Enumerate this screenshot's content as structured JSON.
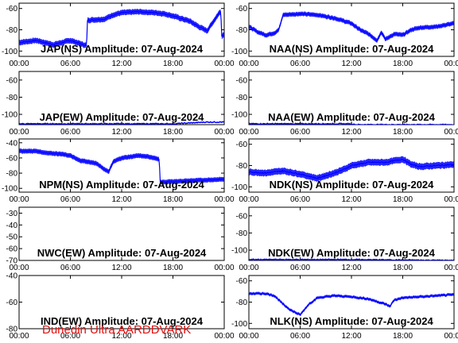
{
  "footer": "Dunedin Ultra AARDDVARK",
  "colors": {
    "trace": "#0000ff",
    "footer": "#e01010",
    "axis": "#000000"
  },
  "chart_data": [
    {
      "type": "line",
      "title": "JAP(NS) Amplitude: 07-Aug-2024",
      "ylim": [
        -105,
        -55
      ],
      "yticks": [
        "-60",
        "-80",
        "-100"
      ],
      "xticks": [
        "00:00",
        "06:00",
        "12:00",
        "18:00",
        "00:00"
      ],
      "series": [
        {
          "x": [
            0,
            2,
            4,
            6,
            7.9,
            8,
            10,
            11,
            12,
            14,
            16,
            17,
            18,
            20,
            21,
            22,
            23,
            23.6,
            23.7,
            24
          ],
          "y": [
            -92,
            -90,
            -94,
            -90,
            -95,
            -71,
            -70,
            -66,
            -64,
            -63,
            -64,
            -65,
            -67,
            -72,
            -77,
            -81,
            -69,
            -62,
            -86,
            -84
          ],
          "noise": 5
        }
      ]
    },
    {
      "type": "line",
      "title": "NAA(NS) Amplitude: 07-Aug-2024",
      "ylim": [
        -105,
        -55
      ],
      "yticks": [
        "-60",
        "-80",
        "-100"
      ],
      "xticks": [
        "00:00",
        "06:00",
        "12:00",
        "18:00",
        "00:00"
      ],
      "series": [
        {
          "x": [
            0,
            1,
            2,
            3,
            3.5,
            4,
            6,
            8,
            10,
            12,
            13,
            14,
            15,
            15.5,
            16,
            17,
            18,
            19,
            20,
            22,
            24
          ],
          "y": [
            -77,
            -82,
            -85,
            -83,
            -80,
            -66,
            -65,
            -66,
            -69,
            -74,
            -80,
            -84,
            -90,
            -82,
            -89,
            -84,
            -85,
            -80,
            -78,
            -77,
            -74
          ],
          "noise": 4
        }
      ]
    },
    {
      "type": "line",
      "title": "JAP(EW) Amplitude: 07-Aug-2024",
      "ylim": [
        -112,
        -50
      ],
      "yticks": [
        "-60",
        "-80",
        "-100"
      ],
      "xticks": [
        "00:00",
        "06:00",
        "12:00",
        "18:00",
        "00:00"
      ],
      "series": [
        {
          "x": [
            0,
            6,
            12,
            18,
            22,
            24
          ],
          "y": [
            -111,
            -111,
            -111,
            -111,
            -109,
            -109
          ],
          "noise": 1.5
        }
      ]
    },
    {
      "type": "line",
      "title": "NAA(EW) Amplitude: 07-Aug-2024",
      "ylim": [
        -112,
        -50
      ],
      "yticks": [
        "-60",
        "-80",
        "-100"
      ],
      "xticks": [
        "00:00",
        "06:00",
        "12:00",
        "18:00",
        "00:00"
      ],
      "series": [
        {
          "x": [
            0,
            8,
            12,
            12.5,
            24
          ],
          "y": [
            -111,
            -111,
            -111,
            -112,
            -112
          ],
          "noise": 1.5
        }
      ]
    },
    {
      "type": "line",
      "title": "NPM(NS) Amplitude: 07-Aug-2024",
      "ylim": [
        -105,
        -35
      ],
      "yticks": [
        "-40",
        "-60",
        "-80",
        "-100"
      ],
      "xticks": [
        "00:00",
        "06:00",
        "12:00",
        "18:00",
        "00:00"
      ],
      "series": [
        {
          "x": [
            0,
            2,
            3,
            5,
            6,
            7,
            8,
            9,
            10,
            10.5,
            11,
            12,
            14,
            15.5,
            16.4,
            16.5,
            18,
            20,
            22,
            24
          ],
          "y": [
            -51,
            -51,
            -53,
            -55,
            -57,
            -63,
            -65,
            -67,
            -75,
            -78,
            -65,
            -60,
            -57,
            -59,
            -62,
            -92,
            -91,
            -90,
            -89,
            -88
          ],
          "noise": 6
        }
      ]
    },
    {
      "type": "line",
      "title": "NDK(NS) Amplitude: 07-Aug-2024",
      "ylim": [
        -105,
        -55
      ],
      "yticks": [
        "-60",
        "-80",
        "-100"
      ],
      "xticks": [
        "00:00",
        "06:00",
        "12:00",
        "18:00",
        "00:00"
      ],
      "series": [
        {
          "x": [
            0,
            2,
            4,
            6,
            8,
            10,
            11,
            12,
            14,
            16,
            18,
            19,
            20,
            22,
            24
          ],
          "y": [
            -86,
            -87,
            -85,
            -88,
            -92,
            -87,
            -84,
            -80,
            -77,
            -77,
            -74,
            -79,
            -81,
            -80,
            -79
          ],
          "noise": 6
        }
      ]
    },
    {
      "type": "line",
      "title": "NWC(EW) Amplitude: 07-Aug-2024",
      "ylim": [
        -70,
        -25
      ],
      "yticks": [
        "-30",
        "-40",
        "-50",
        "-60",
        "-70"
      ],
      "xticks": [
        "00:00",
        "06:00",
        "12:00",
        "18:00",
        "00:00"
      ],
      "series": []
    },
    {
      "type": "line",
      "title": "NDK(EW) Amplitude: 07-Aug-2024",
      "ylim": [
        -112,
        -50
      ],
      "yticks": [
        "-60",
        "-80",
        "-100"
      ],
      "xticks": [
        "00:00",
        "06:00",
        "12:00",
        "18:00",
        "00:00"
      ],
      "series": [
        {
          "x": [
            0,
            6,
            12,
            24
          ],
          "y": [
            -111,
            -111,
            -111,
            -112
          ],
          "noise": 1.5
        }
      ]
    },
    {
      "type": "line",
      "title": "IND(EW) Amplitude: 07-Aug-2024",
      "ylim": [
        -80,
        -40
      ],
      "yticks": [
        "-40",
        "-60",
        "-80"
      ],
      "xticks": [
        "00:00",
        "06:00",
        "12:00",
        "18:00",
        "00:00"
      ],
      "series": []
    },
    {
      "type": "line",
      "title": "NLK(NS) Amplitude: 07-Aug-2024",
      "ylim": [
        -105,
        -55
      ],
      "yticks": [
        "-60",
        "-80",
        "-100"
      ],
      "xticks": [
        "00:00",
        "06:00",
        "12:00",
        "18:00",
        "00:00"
      ],
      "series": [
        {
          "x": [
            0,
            2,
            3,
            4,
            5,
            6,
            7,
            8,
            9,
            10,
            12,
            14,
            16,
            16.5,
            17,
            18,
            20,
            22,
            24
          ],
          "y": [
            -72,
            -72,
            -74,
            -82,
            -88,
            -92,
            -82,
            -76,
            -75,
            -74,
            -75,
            -77,
            -82,
            -84,
            -78,
            -76,
            -75,
            -74,
            -73
          ],
          "noise": 2.5
        }
      ]
    }
  ]
}
